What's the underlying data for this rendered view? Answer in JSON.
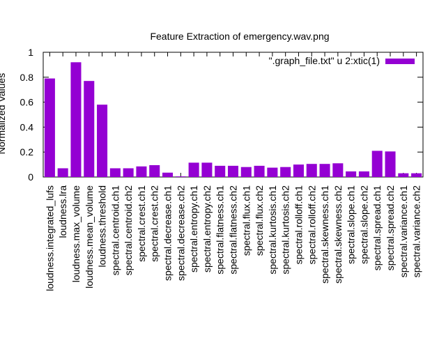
{
  "chart_data": {
    "type": "bar",
    "title": "Feature Extraction of emergency.wav.png",
    "ylabel": "Normalized Values",
    "xlabel": "",
    "ylim": [
      0,
      1
    ],
    "yticks": [
      "0",
      "0.2",
      "0.4",
      "0.6",
      "0.8",
      "1"
    ],
    "legend": {
      "placement": "top-right",
      "label": "\".graph_file.txt\" u 2:xtic(1)"
    },
    "bar_color": "#9400d3",
    "categories": [
      "loudness.integrated_lufs",
      "loudness.lra",
      "loudness.max_volume",
      "loudness.mean_volume",
      "loudness.threshold",
      "spectral.centroid.ch1",
      "spectral.centroid.ch2",
      "spectral.crest.ch1",
      "spectral.crest.ch2",
      "spectral.decrease.ch1",
      "spectral.decrease.ch2",
      "spectral.entropy.ch1",
      "spectral.entropy.ch2",
      "spectral.flatness.ch1",
      "spectral.flatness.ch2",
      "spectral.flux.ch1",
      "spectral.flux.ch2",
      "spectral.kurtosis.ch1",
      "spectral.kurtosis.ch2",
      "spectral.rolloff.ch1",
      "spectral.rolloff.ch2",
      "spectral.skewness.ch1",
      "spectral.skewness.ch2",
      "spectral.slope.ch1",
      "spectral.slope.ch2",
      "spectral.spread.ch1",
      "spectral.spread.ch2",
      "spectral.variance.ch1",
      "spectral.variance.ch2"
    ],
    "values": [
      0.79,
      0.07,
      0.92,
      0.77,
      0.58,
      0.07,
      0.07,
      0.085,
      0.095,
      0.035,
      0.005,
      0.115,
      0.115,
      0.09,
      0.09,
      0.08,
      0.09,
      0.075,
      0.08,
      0.1,
      0.105,
      0.105,
      0.11,
      0.045,
      0.045,
      0.21,
      0.205,
      0.03,
      0.03
    ]
  }
}
